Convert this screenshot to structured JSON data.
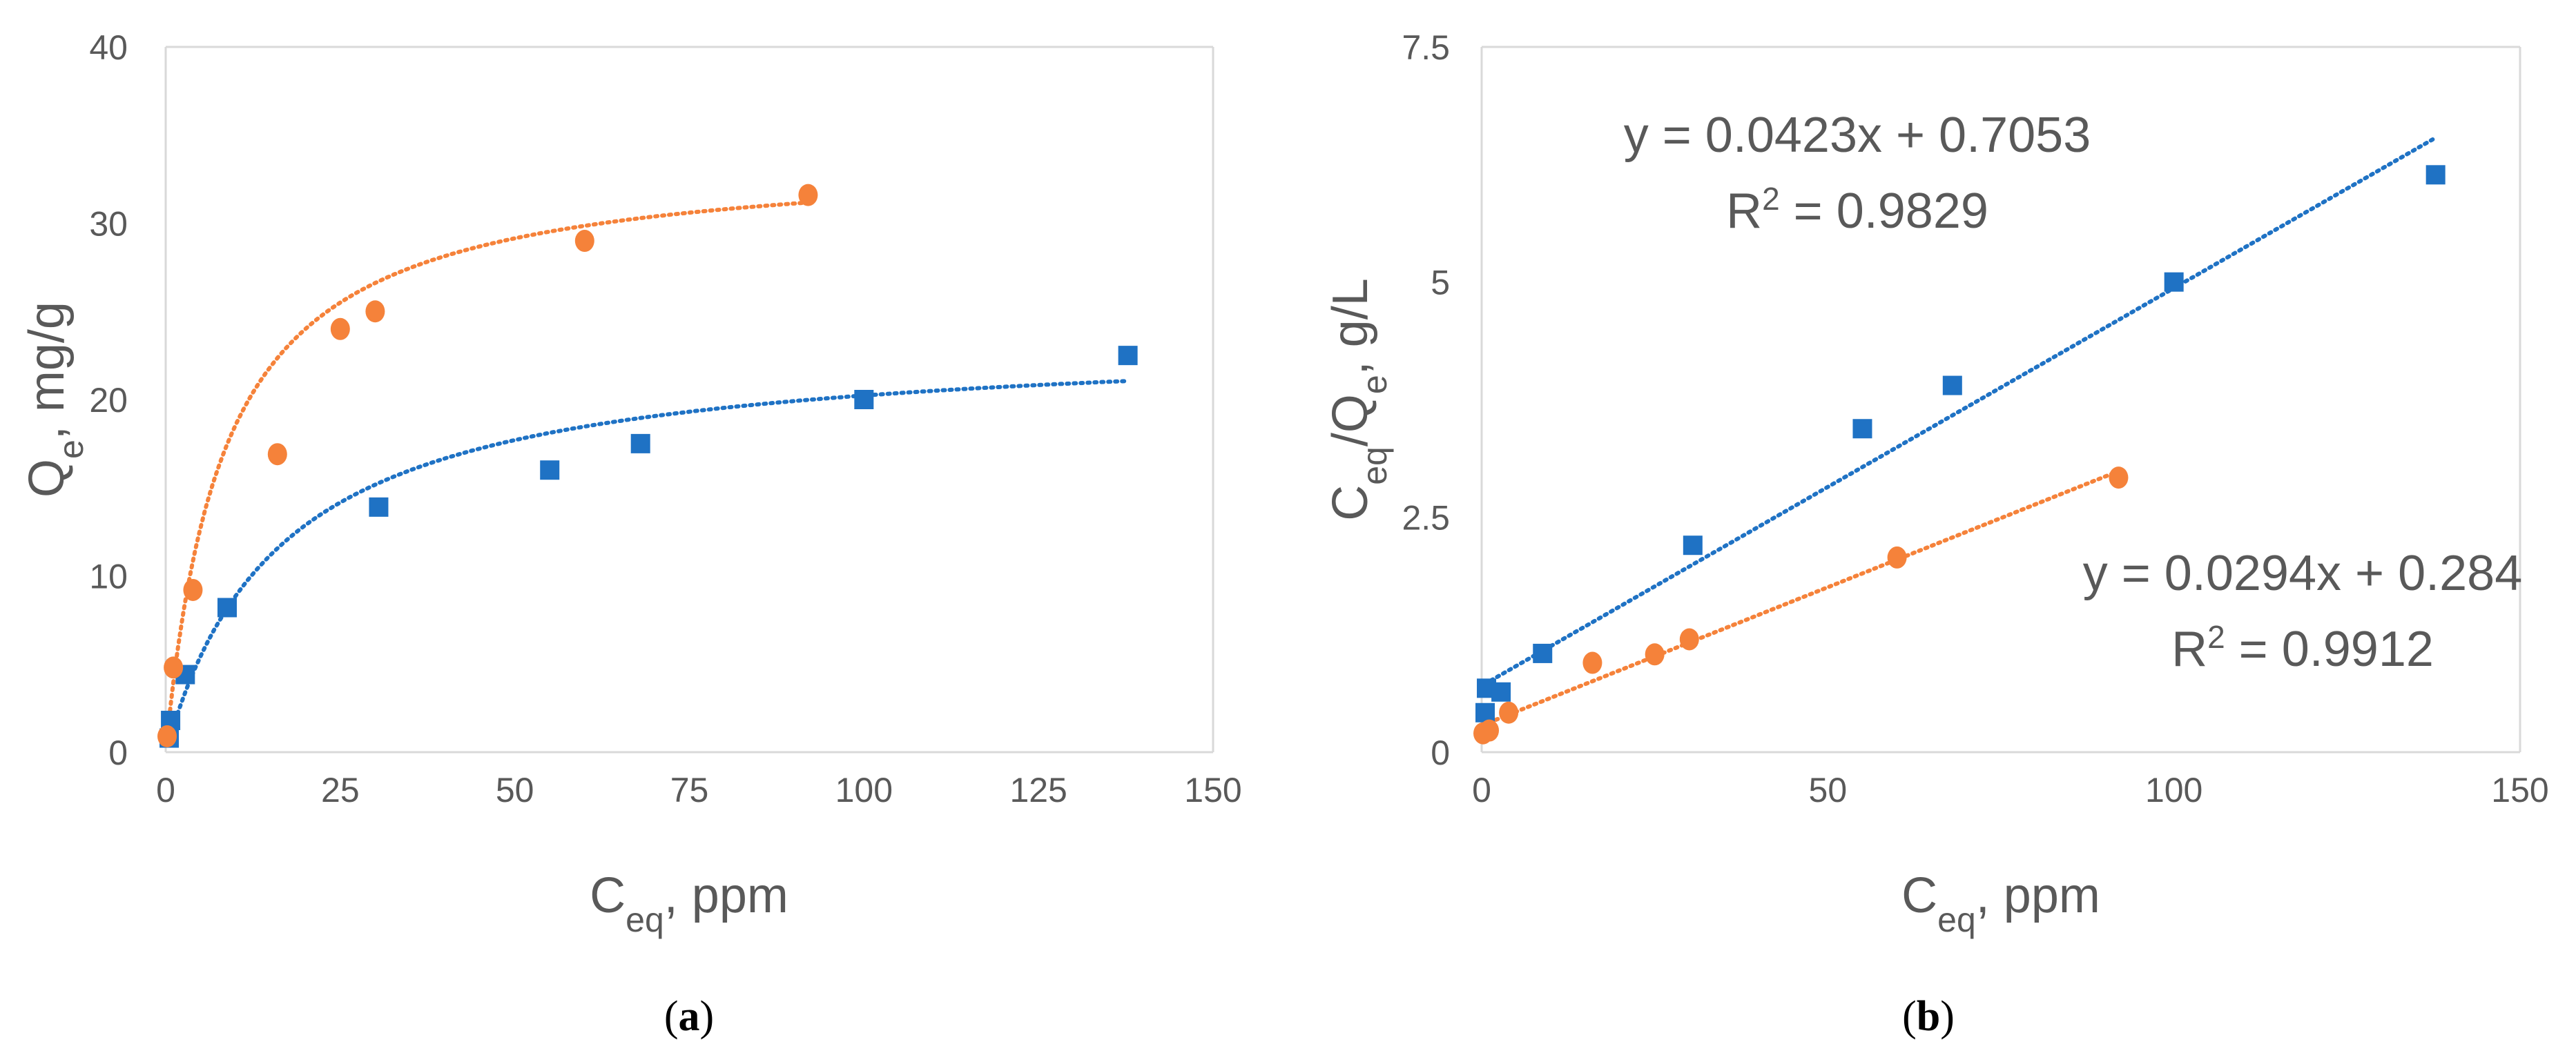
{
  "colors": {
    "blue": "#1f72c4",
    "orange": "#f5823a",
    "axis": "#d9d9d9",
    "text": "#595959"
  },
  "chart_data": [
    {
      "id": "a",
      "type": "scatter",
      "caption": {
        "open": "(",
        "letter": "a",
        "close": ")"
      },
      "xlabel": {
        "main": "C",
        "sub": "eq",
        "rest": ", ppm"
      },
      "ylabel": {
        "main": "Q",
        "sub": "e",
        "rest": ", mg/g"
      },
      "xlim": [
        0,
        150
      ],
      "ylim": [
        0,
        40
      ],
      "xticks": [
        "0",
        "25",
        "50",
        "75",
        "100",
        "125",
        "150"
      ],
      "yticks": [
        "0",
        "10",
        "20",
        "30",
        "40"
      ],
      "grid": false,
      "series": [
        {
          "name": "blue squares",
          "color": "blue",
          "marker": "square",
          "x": [
            0.5,
            0.7,
            2.8,
            8.8,
            30.5,
            55.0,
            68.0,
            100.0,
            137.8
          ],
          "y": [
            0.8,
            1.8,
            4.4,
            8.2,
            13.9,
            16.0,
            17.5,
            20.0,
            22.5
          ],
          "trend": {
            "kind": "langmuir",
            "qmax": 23.6,
            "K": 0.06,
            "x_from": 0.5,
            "x_to": 137.8
          }
        },
        {
          "name": "orange circles",
          "color": "orange",
          "marker": "circle",
          "x": [
            0.2,
            1.1,
            3.9,
            16.0,
            25.0,
            30.0,
            60.0,
            92.0
          ],
          "y": [
            0.9,
            4.8,
            9.2,
            16.9,
            24.0,
            25.0,
            29.0,
            31.6
          ],
          "trend": {
            "kind": "langmuir",
            "qmax": 34.0,
            "K": 0.12,
            "x_from": 0.2,
            "x_to": 92.0
          }
        }
      ]
    },
    {
      "id": "b",
      "type": "scatter",
      "caption": {
        "open": "(",
        "letter": "b",
        "close": ")"
      },
      "xlabel": {
        "main": "C",
        "sub": "eq",
        "rest": ", ppm"
      },
      "ylabel": {
        "p1": "C",
        "s1": "eq",
        "p2": "/Q",
        "s2": "e",
        "rest": ", g/L"
      },
      "xlim": [
        0,
        150
      ],
      "ylim": [
        0,
        7.5
      ],
      "xticks": [
        "0",
        "50",
        "100",
        "150"
      ],
      "yticks": [
        "0",
        "2.5",
        "5",
        "7.5"
      ],
      "grid": false,
      "series": [
        {
          "name": "blue squares",
          "color": "blue",
          "marker": "square",
          "x": [
            0.5,
            0.7,
            2.8,
            8.8,
            30.5,
            55.0,
            68.0,
            100.0,
            137.8
          ],
          "y": [
            0.42,
            0.68,
            0.64,
            1.05,
            2.2,
            3.44,
            3.9,
            5.0,
            6.14
          ],
          "trend": {
            "kind": "linear",
            "slope": 0.0423,
            "intercept": 0.7053,
            "x_from": 0.5,
            "x_to": 137.8
          },
          "equation": {
            "eq": "y = 0.0423x + 0.7053",
            "r2_label": "R",
            "r2_exp": "2",
            "r2_value": " = 0.9829"
          }
        },
        {
          "name": "orange circles",
          "color": "orange",
          "marker": "circle",
          "x": [
            0.2,
            1.1,
            3.9,
            16.0,
            25.0,
            30.0,
            60.0,
            92.0
          ],
          "y": [
            0.2,
            0.23,
            0.42,
            0.95,
            1.04,
            1.2,
            2.07,
            2.92
          ],
          "trend": {
            "kind": "linear",
            "slope": 0.0294,
            "intercept": 0.284,
            "x_from": 0.2,
            "x_to": 92.0
          },
          "equation": {
            "eq": "y = 0.0294x + 0.284",
            "r2_label": "R",
            "r2_exp": "2",
            "r2_value": " = 0.9912"
          }
        }
      ]
    }
  ]
}
